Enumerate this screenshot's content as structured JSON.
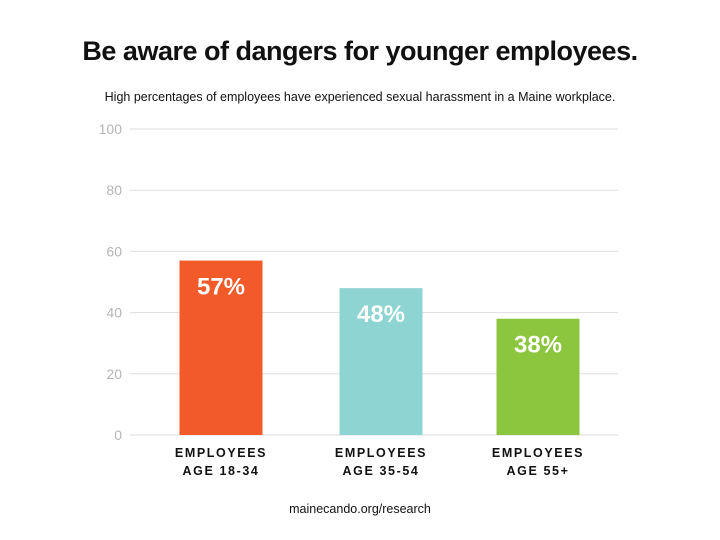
{
  "header": {
    "title": "Be aware of dangers for younger employees.",
    "subtitle": "High percentages of employees have experienced sexual harassment in a Maine workplace."
  },
  "footer": {
    "source": "mainecando.org/research"
  },
  "chart_data": {
    "type": "bar",
    "categories": [
      [
        "EMPLOYEES",
        "AGE 18-34"
      ],
      [
        "EMPLOYEES",
        "AGE 35-54"
      ],
      [
        "EMPLOYEES",
        "AGE 55+"
      ]
    ],
    "values": [
      57,
      48,
      38
    ],
    "data_labels": [
      "57%",
      "48%",
      "38%"
    ],
    "colors": [
      "#f25a2a",
      "#8dd4d3",
      "#8cc63f"
    ],
    "ylim": [
      0,
      100
    ],
    "yticks": [
      0,
      20,
      40,
      60,
      80,
      100
    ],
    "grid": true,
    "grid_color": "#dddddd",
    "xlabel": "",
    "ylabel": ""
  }
}
